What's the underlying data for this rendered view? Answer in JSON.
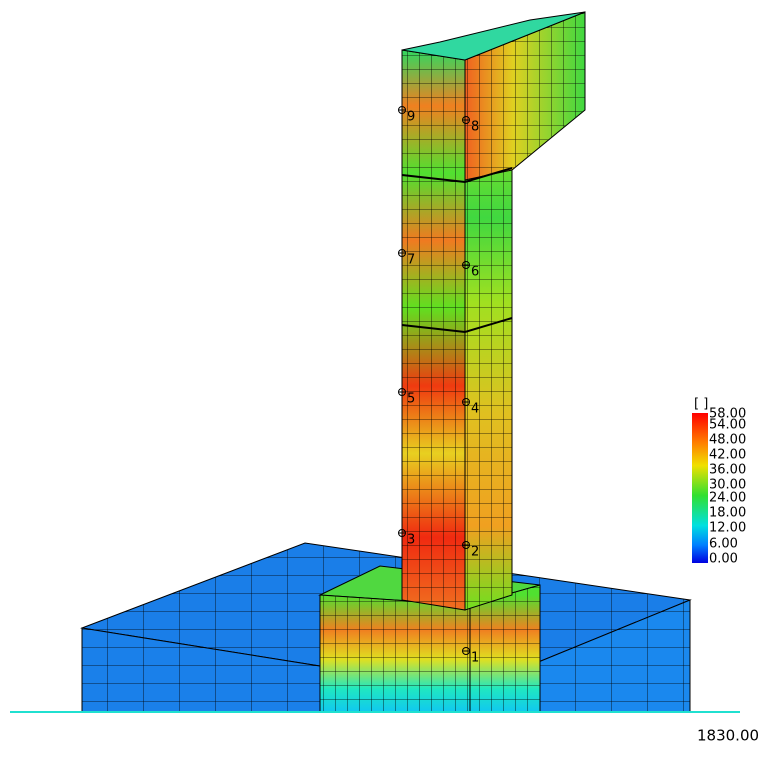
{
  "legend": {
    "unit": "[ ]",
    "labels": [
      "58.00",
      "54.00",
      "48.00",
      "42.00",
      "36.00",
      "30.00",
      "24.00",
      "18.00",
      "12.00",
      "6.00",
      "0.00"
    ]
  },
  "point_labels": [
    "1",
    "2",
    "3",
    "4",
    "5",
    "6",
    "7",
    "8",
    "9"
  ],
  "time": "1830.00"
}
